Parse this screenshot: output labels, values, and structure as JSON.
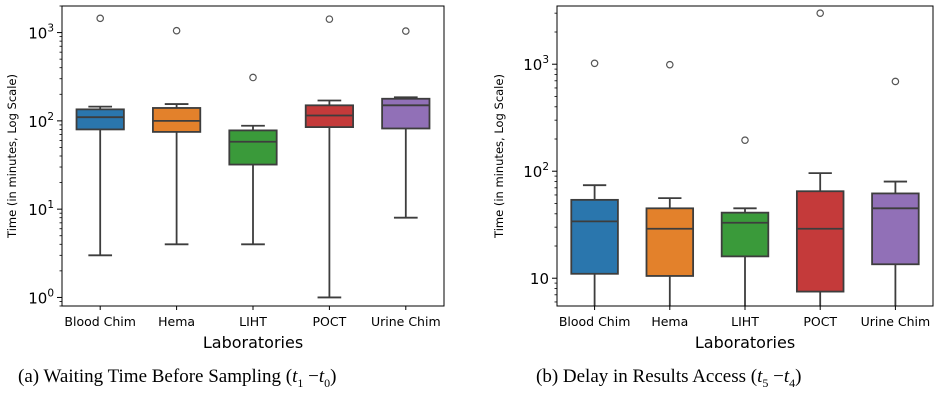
{
  "colors": {
    "Blood Chim": "#2a76ad",
    "Hema": "#e3812b",
    "LIHT": "#3a9a3a",
    "POCT": "#c43a3a",
    "Urine Chim": "#9170b7"
  },
  "chart_data": [
    {
      "type": "box",
      "caption_prefix": "(a) Waiting Time Before Sampling (",
      "xlabel": "Laboratories",
      "ylabel": "Time (in minutes, Log Scale)",
      "yscale": "log",
      "ylim": [
        0.8,
        2000
      ],
      "ytick_values": [
        1,
        10,
        100,
        1000
      ],
      "ytick_labels": [
        "10^0",
        "10^1",
        "10^2",
        "10^3"
      ],
      "categories": [
        "Blood Chim",
        "Hema",
        "LIHT",
        "POCT",
        "Urine Chim"
      ],
      "boxes": [
        {
          "whisker_low": 3,
          "q1": 80,
          "median": 110,
          "q3": 135,
          "whisker_high": 145,
          "outliers": [
            1450
          ]
        },
        {
          "whisker_low": 4,
          "q1": 75,
          "median": 100,
          "q3": 140,
          "whisker_high": 155,
          "outliers": [
            1050
          ]
        },
        {
          "whisker_low": 4,
          "q1": 32,
          "median": 58,
          "q3": 78,
          "whisker_high": 88,
          "outliers": [
            310
          ]
        },
        {
          "whisker_low": 1,
          "q1": 85,
          "median": 115,
          "q3": 150,
          "whisker_high": 170,
          "outliers": [
            1420
          ]
        },
        {
          "whisker_low": 8,
          "q1": 82,
          "median": 150,
          "q3": 178,
          "whisker_high": 185,
          "outliers": [
            1040
          ]
        }
      ]
    },
    {
      "type": "box",
      "caption_prefix": "(b) Delay in Results Access (",
      "xlabel": "Laboratories",
      "ylabel": "Time (in minutes, Log Scale)",
      "yscale": "log",
      "ylim": [
        5.5,
        3500
      ],
      "ytick_values": [
        10,
        100,
        1000
      ],
      "ytick_labels": [
        "10",
        "10^2",
        "10^3"
      ],
      "categories": [
        "Blood Chim",
        "Hema",
        "LIHT",
        "POCT",
        "Urine Chim"
      ],
      "boxes": [
        {
          "whisker_low": 5.5,
          "q1": 11,
          "median": 34,
          "q3": 54,
          "whisker_high": 74,
          "outliers": [
            1020
          ]
        },
        {
          "whisker_low": 5.5,
          "q1": 10.5,
          "median": 29,
          "q3": 45,
          "whisker_high": 56,
          "outliers": [
            990
          ]
        },
        {
          "whisker_low": 5.5,
          "q1": 16,
          "median": 33,
          "q3": 41,
          "whisker_high": 45,
          "outliers": [
            195
          ]
        },
        {
          "whisker_low": 5.5,
          "q1": 7.5,
          "median": 29,
          "q3": 65,
          "whisker_high": 96,
          "outliers": [
            3000
          ]
        },
        {
          "whisker_low": 5.5,
          "q1": 13.5,
          "median": 45,
          "q3": 62,
          "whisker_high": 80,
          "outliers": [
            690
          ]
        }
      ]
    }
  ]
}
